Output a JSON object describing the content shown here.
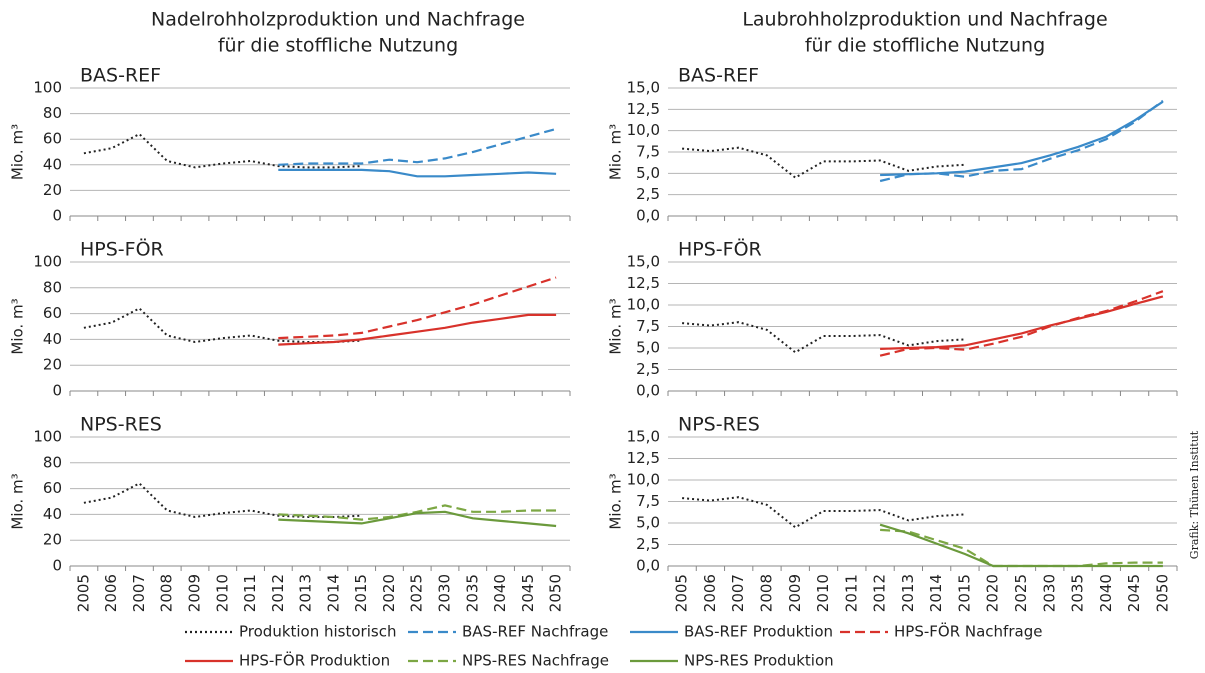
{
  "headings": [
    [
      "Nadelrohholzproduktion und Nachfrage",
      "für die stoffliche Nutzung"
    ],
    [
      "Laubrohholzproduktion und Nachfrage",
      "für die stoffliche Nutzung"
    ]
  ],
  "credit": "Grafik: Thünen Institut",
  "chart_data": [
    {
      "type": "line",
      "title": "BAS-REF",
      "ylabel": "Mio. m³",
      "categories": [
        "2005",
        "2006",
        "2007",
        "2008",
        "2009",
        "2010",
        "2011",
        "2012",
        "2013",
        "2014",
        "2015",
        "2020",
        "2025",
        "2030",
        "2035",
        "2040",
        "2045",
        "2050"
      ],
      "ylim": [
        0,
        100
      ],
      "yticks": [
        0,
        20,
        40,
        60,
        80,
        100
      ],
      "grid": true,
      "series": [
        {
          "name": "Produktion historisch",
          "color": "#222222",
          "style": "dotted",
          "values": [
            49,
            53,
            64,
            43,
            38,
            41,
            43,
            39,
            38,
            38,
            39,
            null,
            null,
            null,
            null,
            null,
            null,
            null
          ]
        },
        {
          "name": "BAS-REF Nachfrage",
          "color": "#3a8ac9",
          "style": "dashed",
          "values": [
            null,
            null,
            null,
            null,
            null,
            null,
            null,
            40,
            41,
            41,
            41,
            44,
            42,
            45,
            50,
            56,
            62,
            68
          ]
        },
        {
          "name": "BAS-REF Produktion",
          "color": "#3a8ac9",
          "style": "solid",
          "values": [
            null,
            null,
            null,
            null,
            null,
            null,
            null,
            36,
            36,
            36,
            36,
            35,
            31,
            31,
            32,
            33,
            34,
            33
          ]
        }
      ]
    },
    {
      "type": "line",
      "title": "HPS-FÖR",
      "ylabel": "Mio. m³",
      "categories": [
        "2005",
        "2006",
        "2007",
        "2008",
        "2009",
        "2010",
        "2011",
        "2012",
        "2013",
        "2014",
        "2015",
        "2020",
        "2025",
        "2030",
        "2035",
        "2040",
        "2045",
        "2050"
      ],
      "ylim": [
        0,
        100
      ],
      "yticks": [
        0,
        20,
        40,
        60,
        80,
        100
      ],
      "grid": true,
      "series": [
        {
          "name": "Produktion historisch",
          "color": "#222222",
          "style": "dotted",
          "values": [
            49,
            53,
            64,
            43,
            38,
            41,
            43,
            39,
            38,
            38,
            39,
            null,
            null,
            null,
            null,
            null,
            null,
            null
          ]
        },
        {
          "name": "HPS-FÖR Nachfrage",
          "color": "#d8322b",
          "style": "dashed",
          "values": [
            null,
            null,
            null,
            null,
            null,
            null,
            null,
            41,
            42,
            43,
            45,
            50,
            55,
            61,
            67,
            74,
            81,
            88
          ]
        },
        {
          "name": "HPS-FÖR Produktion",
          "color": "#d8322b",
          "style": "solid",
          "values": [
            null,
            null,
            null,
            null,
            null,
            null,
            null,
            36,
            37,
            38,
            40,
            43,
            46,
            49,
            53,
            56,
            59,
            59
          ]
        }
      ]
    },
    {
      "type": "line",
      "title": "NPS-RES",
      "ylabel": "Mio. m³",
      "categories": [
        "2005",
        "2006",
        "2007",
        "2008",
        "2009",
        "2010",
        "2011",
        "2012",
        "2013",
        "2014",
        "2015",
        "2020",
        "2025",
        "2030",
        "2035",
        "2040",
        "2045",
        "2050"
      ],
      "ylim": [
        0,
        100
      ],
      "yticks": [
        0,
        20,
        40,
        60,
        80,
        100
      ],
      "grid": true,
      "series": [
        {
          "name": "Produktion historisch",
          "color": "#222222",
          "style": "dotted",
          "values": [
            49,
            53,
            64,
            43,
            38,
            41,
            43,
            39,
            38,
            38,
            39,
            null,
            null,
            null,
            null,
            null,
            null,
            null
          ]
        },
        {
          "name": "NPS-RES Nachfrage",
          "color": "#7ca744",
          "style": "dashed",
          "values": [
            null,
            null,
            null,
            null,
            null,
            null,
            null,
            40,
            39,
            38,
            36,
            38,
            42,
            47,
            42,
            42,
            43,
            43
          ]
        },
        {
          "name": "NPS-RES Produktion",
          "color": "#6b9a3c",
          "style": "solid",
          "values": [
            null,
            null,
            null,
            null,
            null,
            null,
            null,
            36,
            35,
            34,
            33,
            37,
            41,
            42,
            37,
            35,
            33,
            31
          ]
        }
      ]
    },
    {
      "type": "line",
      "title": "BAS-REF",
      "ylabel": "Mio. m³",
      "categories": [
        "2005",
        "2006",
        "2007",
        "2008",
        "2009",
        "2010",
        "2011",
        "2012",
        "2013",
        "2014",
        "2015",
        "2020",
        "2025",
        "2030",
        "2035",
        "2040",
        "2045",
        "2050"
      ],
      "ylim": [
        0,
        15
      ],
      "yticks": [
        {
          "value": 0,
          "label": "0,0"
        },
        {
          "value": 2.5,
          "label": "2,5"
        },
        {
          "value": 5,
          "label": "5,0"
        },
        {
          "value": 7.5,
          "label": "7,5"
        },
        {
          "value": 10,
          "label": "10,0"
        },
        {
          "value": 12.5,
          "label": "12,5"
        },
        {
          "value": 15,
          "label": "15,0"
        }
      ],
      "grid": true,
      "series": [
        {
          "name": "Produktion historisch",
          "color": "#222222",
          "style": "dotted",
          "values": [
            7.9,
            7.6,
            8.0,
            7.1,
            4.5,
            6.4,
            6.4,
            6.5,
            5.3,
            5.8,
            6.0,
            null,
            null,
            null,
            null,
            null,
            null,
            null
          ]
        },
        {
          "name": "BAS-REF Nachfrage",
          "color": "#3a8ac9",
          "style": "dashed",
          "values": [
            null,
            null,
            null,
            null,
            null,
            null,
            null,
            4.1,
            4.9,
            5.0,
            4.6,
            5.3,
            5.5,
            6.7,
            7.7,
            9.0,
            11.0,
            13.5
          ]
        },
        {
          "name": "BAS-REF Produktion",
          "color": "#3a8ac9",
          "style": "solid",
          "values": [
            null,
            null,
            null,
            null,
            null,
            null,
            null,
            4.8,
            4.9,
            5.0,
            5.2,
            5.7,
            6.2,
            7.1,
            8.1,
            9.3,
            11.2,
            13.4
          ]
        }
      ]
    },
    {
      "type": "line",
      "title": "HPS-FÖR",
      "ylabel": "Mio. m³",
      "categories": [
        "2005",
        "2006",
        "2007",
        "2008",
        "2009",
        "2010",
        "2011",
        "2012",
        "2013",
        "2014",
        "2015",
        "2020",
        "2025",
        "2030",
        "2035",
        "2040",
        "2045",
        "2050"
      ],
      "ylim": [
        0,
        15
      ],
      "yticks": [
        {
          "value": 0,
          "label": "0,0"
        },
        {
          "value": 2.5,
          "label": "2,5"
        },
        {
          "value": 5,
          "label": "5,0"
        },
        {
          "value": 7.5,
          "label": "7,5"
        },
        {
          "value": 10,
          "label": "10,0"
        },
        {
          "value": 12.5,
          "label": "12,5"
        },
        {
          "value": 15,
          "label": "15,0"
        }
      ],
      "grid": true,
      "series": [
        {
          "name": "Produktion historisch",
          "color": "#222222",
          "style": "dotted",
          "values": [
            7.9,
            7.6,
            8.0,
            7.1,
            4.5,
            6.4,
            6.4,
            6.5,
            5.3,
            5.8,
            6.0,
            null,
            null,
            null,
            null,
            null,
            null,
            null
          ]
        },
        {
          "name": "HPS-FÖR Nachfrage",
          "color": "#d8322b",
          "style": "dashed",
          "values": [
            null,
            null,
            null,
            null,
            null,
            null,
            null,
            4.1,
            4.9,
            5.0,
            4.8,
            5.5,
            6.3,
            7.5,
            8.5,
            9.3,
            10.4,
            11.6
          ]
        },
        {
          "name": "HPS-FÖR Produktion",
          "color": "#d8322b",
          "style": "solid",
          "values": [
            null,
            null,
            null,
            null,
            null,
            null,
            null,
            4.9,
            5.0,
            5.1,
            5.3,
            6.0,
            6.7,
            7.6,
            8.4,
            9.2,
            10.1,
            11.0
          ]
        }
      ]
    },
    {
      "type": "line",
      "title": "NPS-RES",
      "ylabel": "Mio. m³",
      "categories": [
        "2005",
        "2006",
        "2007",
        "2008",
        "2009",
        "2010",
        "2011",
        "2012",
        "2013",
        "2014",
        "2015",
        "2020",
        "2025",
        "2030",
        "2035",
        "2040",
        "2045",
        "2050"
      ],
      "ylim": [
        0,
        15
      ],
      "yticks": [
        {
          "value": 0,
          "label": "0,0"
        },
        {
          "value": 2.5,
          "label": "2,5"
        },
        {
          "value": 5,
          "label": "5,0"
        },
        {
          "value": 7.5,
          "label": "7,5"
        },
        {
          "value": 10,
          "label": "10,0"
        },
        {
          "value": 12.5,
          "label": "12,5"
        },
        {
          "value": 15,
          "label": "15,0"
        }
      ],
      "grid": true,
      "series": [
        {
          "name": "Produktion historisch",
          "color": "#222222",
          "style": "dotted",
          "values": [
            7.9,
            7.6,
            8.0,
            7.1,
            4.5,
            6.4,
            6.4,
            6.5,
            5.3,
            5.8,
            6.0,
            null,
            null,
            null,
            null,
            null,
            null,
            null
          ]
        },
        {
          "name": "NPS-RES Nachfrage",
          "color": "#7ca744",
          "style": "dashed",
          "values": [
            null,
            null,
            null,
            null,
            null,
            null,
            null,
            4.2,
            4.0,
            3.0,
            2.0,
            0,
            0,
            0,
            0,
            0.3,
            0.4,
            0.4
          ]
        },
        {
          "name": "NPS-RES Produktion",
          "color": "#6b9a3c",
          "style": "solid",
          "values": [
            null,
            null,
            null,
            null,
            null,
            null,
            null,
            4.8,
            3.8,
            2.6,
            1.4,
            0,
            0,
            0,
            0,
            0,
            0,
            0
          ]
        }
      ]
    }
  ]
}
